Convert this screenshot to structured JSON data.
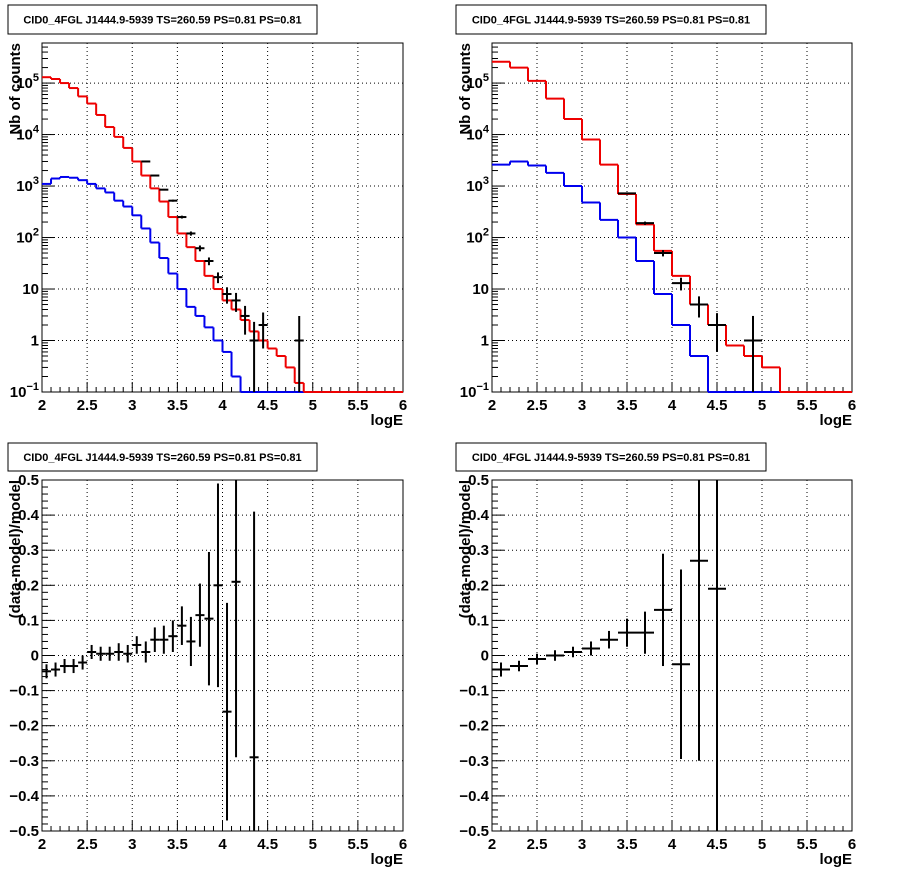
{
  "chart_data": [
    {
      "type": "line",
      "title": "CID0_4FGL J1444.9-5939 TS=260.59 PS=0.81 PS=0.81",
      "xlabel": "logE",
      "ylabel": "Nb of counts",
      "xlim": [
        2,
        6
      ],
      "ylim": [
        0.1,
        600000
      ],
      "log_y": true,
      "grid": true,
      "xticks": [
        "2",
        "2.5",
        "3",
        "3.5",
        "4",
        "4.5",
        "5",
        "5.5",
        "6"
      ],
      "yticks": [
        {
          "v": 0.1,
          "label": "10",
          "exp": "−1"
        },
        {
          "v": 1,
          "label": "1",
          "exp": ""
        },
        {
          "v": 10,
          "label": "10",
          "exp": ""
        },
        {
          "v": 100,
          "label": "10",
          "exp": "2"
        },
        {
          "v": 1000,
          "label": "10",
          "exp": "3"
        },
        {
          "v": 10000,
          "label": "10",
          "exp": "4"
        },
        {
          "v": 100000,
          "label": "10",
          "exp": "5"
        }
      ],
      "bin_edges": [
        2.0,
        2.1,
        2.2,
        2.3,
        2.4,
        2.5,
        2.6,
        2.7,
        2.8,
        2.9,
        3.0,
        3.1,
        3.2,
        3.3,
        3.4,
        3.5,
        3.6,
        3.7,
        3.8,
        3.9,
        4.0,
        4.1,
        4.2,
        4.3,
        4.4,
        4.5,
        4.6,
        4.7,
        4.8,
        4.9,
        5.0,
        5.1,
        5.2,
        5.3,
        5.4,
        5.5,
        5.6,
        5.7,
        5.8,
        5.9,
        6.0
      ],
      "series": [
        {
          "kind": "step",
          "color": "#0000ee",
          "values": [
            1100,
            1400,
            1500,
            1450,
            1300,
            1100,
            900,
            750,
            520,
            400,
            270,
            150,
            80,
            40,
            20,
            10,
            4.5,
            3,
            1.8,
            1,
            0.6,
            0.2,
            0.1,
            0.1,
            0.1,
            0.1,
            0.1,
            0.1,
            0.1,
            0.1,
            0.1,
            0.1,
            0.1,
            0.1,
            0.1,
            0.1,
            0.1,
            0.1,
            0.1,
            0.1
          ]
        },
        {
          "kind": "step",
          "color": "#ee0000",
          "values": [
            130000,
            120000,
            100000,
            80000,
            55000,
            40000,
            24000,
            14000,
            9000,
            5500,
            3000,
            1600,
            900,
            500,
            250,
            120,
            65,
            35,
            18,
            10,
            6,
            4,
            2.5,
            1.5,
            1,
            0.7,
            0.5,
            0.3,
            0.15,
            0.1,
            0.1,
            0.1,
            0.1,
            0.1,
            0.1,
            0.1,
            0.1,
            0.1,
            0.1,
            0.1
          ]
        },
        {
          "kind": "points",
          "color": "#000000",
          "x": [
            3.15,
            3.25,
            3.35,
            3.45,
            3.55,
            3.65,
            3.75,
            3.85,
            3.95,
            4.05,
            4.15,
            4.25,
            4.35,
            4.45,
            4.85
          ],
          "y": [
            3000,
            1600,
            850,
            520,
            250,
            120,
            62,
            35,
            17,
            8,
            6,
            3,
            1,
            2,
            1
          ],
          "yerr_lo": [
            55,
            40,
            29,
            23,
            16,
            11,
            8,
            6,
            4,
            2.8,
            2.4,
            1.7,
            0.9,
            1.3,
            0.9
          ],
          "yerr_hi": [
            55,
            40,
            29,
            23,
            16,
            11,
            8,
            6,
            4,
            2.8,
            2.4,
            1.7,
            1.3,
            1.5,
            2
          ]
        }
      ]
    },
    {
      "type": "line",
      "title": "CID0_4FGL J1444.9-5939 TS=260.59 PS=0.81 PS=0.81",
      "xlabel": "logE",
      "ylabel": "Nb of counts",
      "xlim": [
        2,
        6
      ],
      "ylim": [
        0.1,
        600000
      ],
      "log_y": true,
      "grid": true,
      "xticks": [
        "2",
        "2.5",
        "3",
        "3.5",
        "4",
        "4.5",
        "5",
        "5.5",
        "6"
      ],
      "yticks": [
        {
          "v": 0.1,
          "label": "10",
          "exp": "−1"
        },
        {
          "v": 1,
          "label": "1",
          "exp": ""
        },
        {
          "v": 10,
          "label": "10",
          "exp": ""
        },
        {
          "v": 100,
          "label": "10",
          "exp": "2"
        },
        {
          "v": 1000,
          "label": "10",
          "exp": "3"
        },
        {
          "v": 10000,
          "label": "10",
          "exp": "4"
        },
        {
          "v": 100000,
          "label": "10",
          "exp": "5"
        }
      ],
      "bin_edges": [
        2.0,
        2.2,
        2.4,
        2.6,
        2.8,
        3.0,
        3.2,
        3.4,
        3.6,
        3.8,
        4.0,
        4.2,
        4.4,
        4.6,
        4.8,
        5.0,
        5.2,
        5.4,
        5.6,
        5.8,
        6.0
      ],
      "series": [
        {
          "kind": "step",
          "color": "#0000ee",
          "values": [
            2600,
            3000,
            2500,
            1800,
            1000,
            480,
            220,
            100,
            35,
            8,
            2,
            0.5,
            0.1,
            0.1,
            0.1,
            0.1,
            0.1,
            0.1,
            0.1,
            0.1
          ]
        },
        {
          "kind": "step",
          "color": "#ee0000",
          "values": [
            260000,
            200000,
            110000,
            50000,
            20000,
            8000,
            2600,
            700,
            180,
            55,
            18,
            5,
            2,
            0.8,
            0.5,
            0.3,
            0.1,
            0.1,
            0.1,
            0.1
          ]
        },
        {
          "kind": "points",
          "color": "#000000",
          "x": [
            3.5,
            3.7,
            3.9,
            4.1,
            4.3,
            4.5,
            4.9
          ],
          "y": [
            720,
            190,
            50,
            13,
            5,
            2,
            1
          ],
          "yerr_lo": [
            27,
            14,
            7,
            3.6,
            2.2,
            1.4,
            0.9
          ],
          "yerr_hi": [
            27,
            14,
            7,
            3.6,
            2.2,
            1.4,
            2
          ]
        }
      ]
    },
    {
      "type": "scatter",
      "title": "CID0_4FGL J1444.9-5939 TS=260.59 PS=0.81 PS=0.81",
      "xlabel": "logE",
      "ylabel": "(data-model)/model",
      "xlim": [
        2,
        6
      ],
      "ylim": [
        -0.5,
        0.5
      ],
      "log_y": false,
      "grid": true,
      "xticks": [
        "2",
        "2.5",
        "3",
        "3.5",
        "4",
        "4.5",
        "5",
        "5.5",
        "6"
      ],
      "yticks": [
        {
          "v": -0.5,
          "label": "−0.5",
          "exp": ""
        },
        {
          "v": -0.4,
          "label": "−0.4",
          "exp": ""
        },
        {
          "v": -0.3,
          "label": "−0.3",
          "exp": ""
        },
        {
          "v": -0.2,
          "label": "−0.2",
          "exp": ""
        },
        {
          "v": -0.1,
          "label": "−0.1",
          "exp": ""
        },
        {
          "v": 0,
          "label": "0",
          "exp": ""
        },
        {
          "v": 0.1,
          "label": "0.1",
          "exp": ""
        },
        {
          "v": 0.2,
          "label": "0.2",
          "exp": ""
        },
        {
          "v": 0.3,
          "label": "0.3",
          "exp": ""
        },
        {
          "v": 0.4,
          "label": "0.4",
          "exp": ""
        },
        {
          "v": 0.5,
          "label": "0.5",
          "exp": ""
        }
      ],
      "series": [
        {
          "kind": "points",
          "color": "#000000",
          "xhalf": 0.05,
          "x": [
            2.05,
            2.15,
            2.25,
            2.35,
            2.45,
            2.55,
            2.65,
            2.75,
            2.85,
            2.95,
            3.05,
            3.15,
            3.25,
            3.35,
            3.45,
            3.55,
            3.65,
            3.75,
            3.85,
            3.95,
            4.05,
            4.15,
            4.35
          ],
          "y": [
            -0.045,
            -0.04,
            -0.03,
            -0.03,
            -0.02,
            0.01,
            0.005,
            0.005,
            0.01,
            0.005,
            0.03,
            0.01,
            0.045,
            0.045,
            0.055,
            0.085,
            0.04,
            0.115,
            0.105,
            0.2,
            -0.16,
            0.21,
            -0.29
          ],
          "yerr": [
            0.02,
            0.02,
            0.02,
            0.02,
            0.02,
            0.02,
            0.02,
            0.02,
            0.025,
            0.025,
            0.025,
            0.03,
            0.035,
            0.04,
            0.045,
            0.055,
            0.07,
            0.09,
            0.19,
            0.29,
            0.31,
            0.5,
            0.7
          ]
        }
      ]
    },
    {
      "type": "scatter",
      "title": "CID0_4FGL J1444.9-5939 TS=260.59 PS=0.81 PS=0.81",
      "xlabel": "logE",
      "ylabel": "(data-model)/model",
      "xlim": [
        2,
        6
      ],
      "ylim": [
        -0.5,
        0.5
      ],
      "log_y": false,
      "grid": true,
      "xticks": [
        "2",
        "2.5",
        "3",
        "3.5",
        "4",
        "4.5",
        "5",
        "5.5",
        "6"
      ],
      "yticks": [
        {
          "v": -0.5,
          "label": "−0.5",
          "exp": ""
        },
        {
          "v": -0.4,
          "label": "−0.4",
          "exp": ""
        },
        {
          "v": -0.3,
          "label": "−0.3",
          "exp": ""
        },
        {
          "v": -0.2,
          "label": "−0.2",
          "exp": ""
        },
        {
          "v": -0.1,
          "label": "−0.1",
          "exp": ""
        },
        {
          "v": 0,
          "label": "0",
          "exp": ""
        },
        {
          "v": 0.1,
          "label": "0.1",
          "exp": ""
        },
        {
          "v": 0.2,
          "label": "0.2",
          "exp": ""
        },
        {
          "v": 0.3,
          "label": "0.3",
          "exp": ""
        },
        {
          "v": 0.4,
          "label": "0.4",
          "exp": ""
        },
        {
          "v": 0.5,
          "label": "0.5",
          "exp": ""
        }
      ],
      "series": [
        {
          "kind": "points",
          "color": "#000000",
          "xhalf": 0.1,
          "x": [
            2.1,
            2.3,
            2.5,
            2.7,
            2.9,
            3.1,
            3.3,
            3.5,
            3.7,
            3.9,
            4.1,
            4.3,
            4.5
          ],
          "y": [
            -0.04,
            -0.03,
            -0.01,
            0.0,
            0.01,
            0.02,
            0.045,
            0.065,
            0.065,
            0.13,
            -0.025,
            0.27,
            0.19
          ],
          "yerr": [
            0.02,
            0.015,
            0.015,
            0.015,
            0.015,
            0.02,
            0.025,
            0.04,
            0.06,
            0.16,
            0.27,
            0.57,
            0.71
          ]
        }
      ]
    }
  ]
}
